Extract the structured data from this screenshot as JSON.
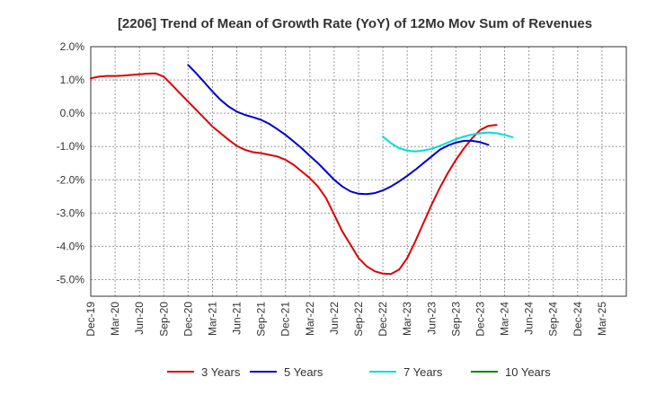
{
  "chart_data": {
    "type": "line",
    "title": "[2206]  Trend of Mean of Growth Rate (YoY) of 12Mo Mov Sum of Revenues",
    "xlabel": "",
    "ylabel": "",
    "ylim": [
      -5.5,
      2.0
    ],
    "yticks": [
      2.0,
      1.0,
      0.0,
      -1.0,
      -2.0,
      -3.0,
      -4.0,
      -5.0
    ],
    "ytick_labels": [
      "2.0%",
      "1.0%",
      "0.0%",
      "-1.0%",
      "-2.0%",
      "-3.0%",
      "-4.0%",
      "-5.0%"
    ],
    "xtick_labels": [
      "Dec-19",
      "Mar-20",
      "Jun-20",
      "Sep-20",
      "Dec-20",
      "Mar-21",
      "Jun-21",
      "Sep-21",
      "Dec-21",
      "Mar-22",
      "Jun-22",
      "Sep-22",
      "Dec-22",
      "Mar-23",
      "Jun-23",
      "Sep-23",
      "Dec-23",
      "Mar-24",
      "Jun-24",
      "Sep-24",
      "Dec-24",
      "Mar-25"
    ],
    "grid": true,
    "legend_position": "bottom",
    "series": [
      {
        "name": "3 Years",
        "color": "#dd0000",
        "start_index": 0,
        "values": [
          1.05,
          1.1,
          1.12,
          1.12,
          1.13,
          1.15,
          1.17,
          1.19,
          1.2,
          1.1,
          0.85,
          0.6,
          0.35,
          0.1,
          -0.15,
          -0.4,
          -0.6,
          -0.8,
          -0.98,
          -1.1,
          -1.17,
          -1.2,
          -1.25,
          -1.3,
          -1.4,
          -1.55,
          -1.75,
          -1.95,
          -2.2,
          -2.55,
          -3.05,
          -3.55,
          -3.95,
          -4.35,
          -4.6,
          -4.75,
          -4.82,
          -4.83,
          -4.7,
          -4.35,
          -3.85,
          -3.3,
          -2.75,
          -2.25,
          -1.8,
          -1.4,
          -1.05,
          -0.75,
          -0.5,
          -0.38,
          -0.35
        ]
      },
      {
        "name": "5 Years",
        "color": "#0000cc",
        "start_index": 12,
        "values": [
          1.45,
          1.2,
          0.93,
          0.65,
          0.4,
          0.2,
          0.05,
          -0.05,
          -0.12,
          -0.2,
          -0.32,
          -0.48,
          -0.65,
          -0.85,
          -1.05,
          -1.28,
          -1.5,
          -1.75,
          -2.0,
          -2.2,
          -2.35,
          -2.42,
          -2.43,
          -2.4,
          -2.32,
          -2.2,
          -2.05,
          -1.88,
          -1.7,
          -1.5,
          -1.3,
          -1.1,
          -0.97,
          -0.88,
          -0.83,
          -0.83,
          -0.87,
          -0.95
        ]
      },
      {
        "name": "7 Years",
        "color": "#00dddd",
        "start_index": 36,
        "values": [
          -0.7,
          -0.9,
          -1.05,
          -1.12,
          -1.15,
          -1.12,
          -1.07,
          -0.98,
          -0.88,
          -0.78,
          -0.7,
          -0.64,
          -0.6,
          -0.58,
          -0.6,
          -0.65,
          -0.72
        ]
      },
      {
        "name": "10 Years",
        "color": "#008800",
        "start_index": 0,
        "values": []
      }
    ],
    "x_unit": "monthly points from Dec-19"
  }
}
